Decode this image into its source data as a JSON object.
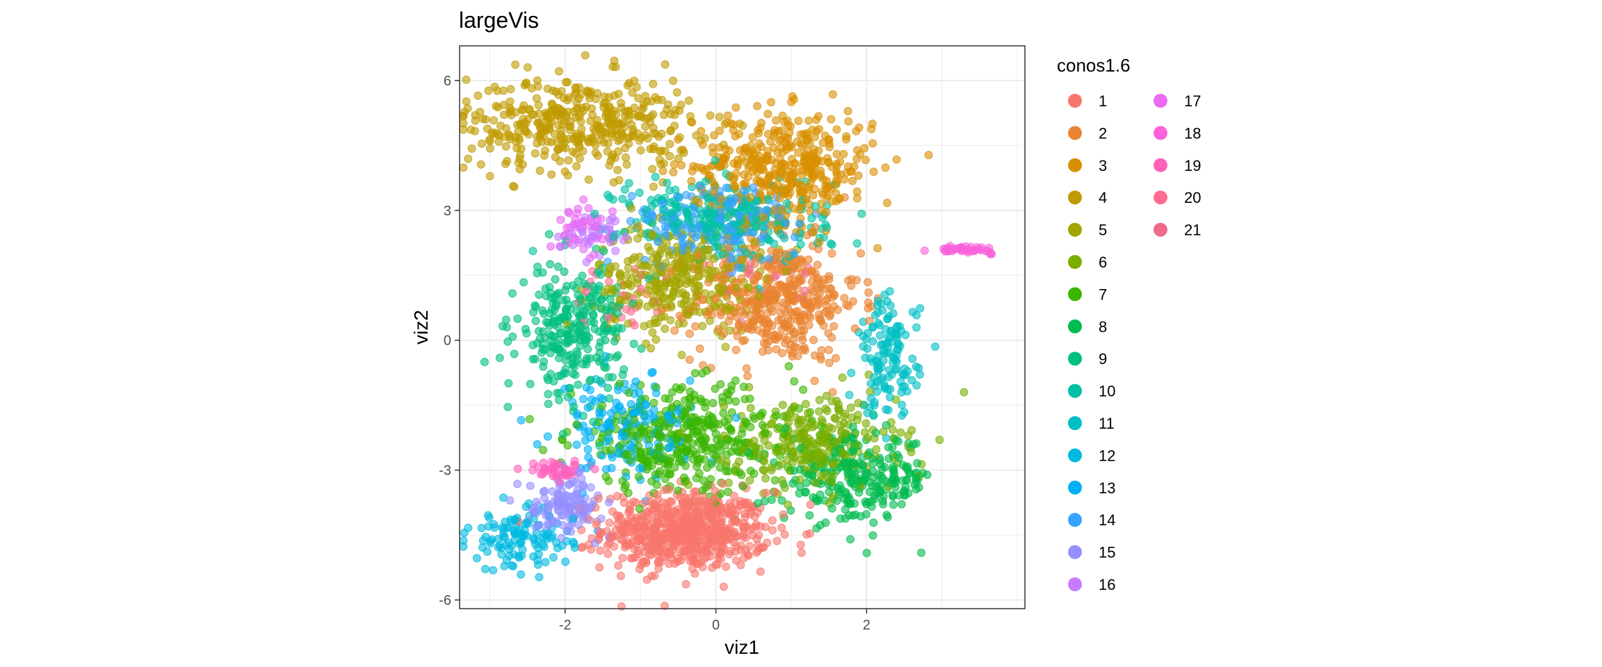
{
  "chart_data": {
    "type": "scatter",
    "title": "largeVis",
    "xlabel": "viz1",
    "ylabel": "viz2",
    "xlim": [
      -3.4,
      4.1
    ],
    "ylim": [
      -6.2,
      6.8
    ],
    "x_ticks": [
      -2,
      0,
      2
    ],
    "y_ticks": [
      -6,
      -3,
      0,
      3,
      6
    ],
    "x_tick_labels": [
      "-2",
      "0",
      "2"
    ],
    "y_tick_labels": [
      "-6",
      "-3",
      "0",
      "3",
      "6"
    ],
    "grid": true,
    "legend_title": "conos1.6",
    "legend_position": "right",
    "series": [
      {
        "name": "1",
        "color": "#F8766D",
        "cluster": {
          "cx": -0.4,
          "cy": -4.4,
          "sx": 0.55,
          "sy": 0.45,
          "n": 650
        }
      },
      {
        "name": "2",
        "color": "#EA8331",
        "cluster": {
          "cx": 0.8,
          "cy": 0.9,
          "sx": 0.55,
          "sy": 0.7,
          "n": 420
        }
      },
      {
        "name": "3",
        "color": "#D89000",
        "cluster": {
          "cx": 0.9,
          "cy": 4.0,
          "sx": 0.6,
          "sy": 0.65,
          "n": 420
        }
      },
      {
        "name": "4",
        "color": "#C09B00",
        "cluster": {
          "cx": -1.8,
          "cy": 5.0,
          "sx": 0.75,
          "sy": 0.55,
          "n": 420
        }
      },
      {
        "name": "5",
        "color": "#A3A500",
        "cluster": {
          "cx": -0.5,
          "cy": 1.4,
          "sx": 0.55,
          "sy": 0.6,
          "n": 320
        }
      },
      {
        "name": "6",
        "color": "#7CAE00",
        "cluster": {
          "cx": 1.3,
          "cy": -2.4,
          "sx": 0.55,
          "sy": 0.55,
          "n": 260
        }
      },
      {
        "name": "7",
        "color": "#39B600",
        "cluster": {
          "cx": -0.4,
          "cy": -2.3,
          "sx": 0.75,
          "sy": 0.6,
          "n": 380
        }
      },
      {
        "name": "8",
        "color": "#00BB4E",
        "cluster": {
          "cx": 1.9,
          "cy": -3.2,
          "sx": 0.5,
          "sy": 0.5,
          "n": 260
        }
      },
      {
        "name": "9",
        "color": "#00BF7D",
        "cluster": {
          "cx": -1.9,
          "cy": 0.2,
          "sx": 0.35,
          "sy": 0.75,
          "n": 280
        }
      },
      {
        "name": "10",
        "color": "#00C1A3",
        "cluster": {
          "cx": 0.1,
          "cy": 2.8,
          "sx": 0.7,
          "sy": 0.5,
          "n": 260
        }
      },
      {
        "name": "11",
        "color": "#00BFC4",
        "cluster": {
          "cx": 2.3,
          "cy": -0.4,
          "sx": 0.2,
          "sy": 0.7,
          "n": 130
        }
      },
      {
        "name": "12",
        "color": "#00BAE0",
        "cluster": {
          "cx": -2.6,
          "cy": -4.6,
          "sx": 0.35,
          "sy": 0.35,
          "n": 120
        }
      },
      {
        "name": "13",
        "color": "#00B0F6",
        "cluster": {
          "cx": -1.2,
          "cy": -2.0,
          "sx": 0.45,
          "sy": 0.6,
          "n": 150
        }
      },
      {
        "name": "14",
        "color": "#35A2FF",
        "cluster": {
          "cx": 0.0,
          "cy": 2.7,
          "sx": 0.55,
          "sy": 0.45,
          "n": 160
        }
      },
      {
        "name": "15",
        "color": "#9590FF",
        "cluster": {
          "cx": -2.0,
          "cy": -3.8,
          "sx": 0.25,
          "sy": 0.3,
          "n": 120
        }
      },
      {
        "name": "16",
        "color": "#C77CFF",
        "cluster": {
          "cx": -1.5,
          "cy": 2.5,
          "sx": 0.25,
          "sy": 0.25,
          "n": 40
        }
      },
      {
        "name": "17",
        "color": "#E76BF3",
        "cluster": {
          "cx": -1.8,
          "cy": 2.6,
          "sx": 0.2,
          "sy": 0.25,
          "n": 40
        }
      },
      {
        "name": "18",
        "color": "#FA62DB",
        "cluster": {
          "cx": 3.3,
          "cy": 2.1,
          "sx": 0.18,
          "sy": 0.04,
          "n": 45
        }
      },
      {
        "name": "19",
        "color": "#FF62BC",
        "cluster": {
          "cx": -2.1,
          "cy": -3.0,
          "sx": 0.2,
          "sy": 0.1,
          "n": 40
        }
      },
      {
        "name": "20",
        "color": "#FF6C91",
        "cluster": {
          "cx": -1.3,
          "cy": 1.0,
          "sx": 0.3,
          "sy": 0.4,
          "n": 25
        }
      },
      {
        "name": "21",
        "color": "#F06A8A",
        "cluster": {
          "cx": 0.5,
          "cy": 1.5,
          "sx": 0.4,
          "sy": 0.4,
          "n": 25
        }
      }
    ]
  }
}
